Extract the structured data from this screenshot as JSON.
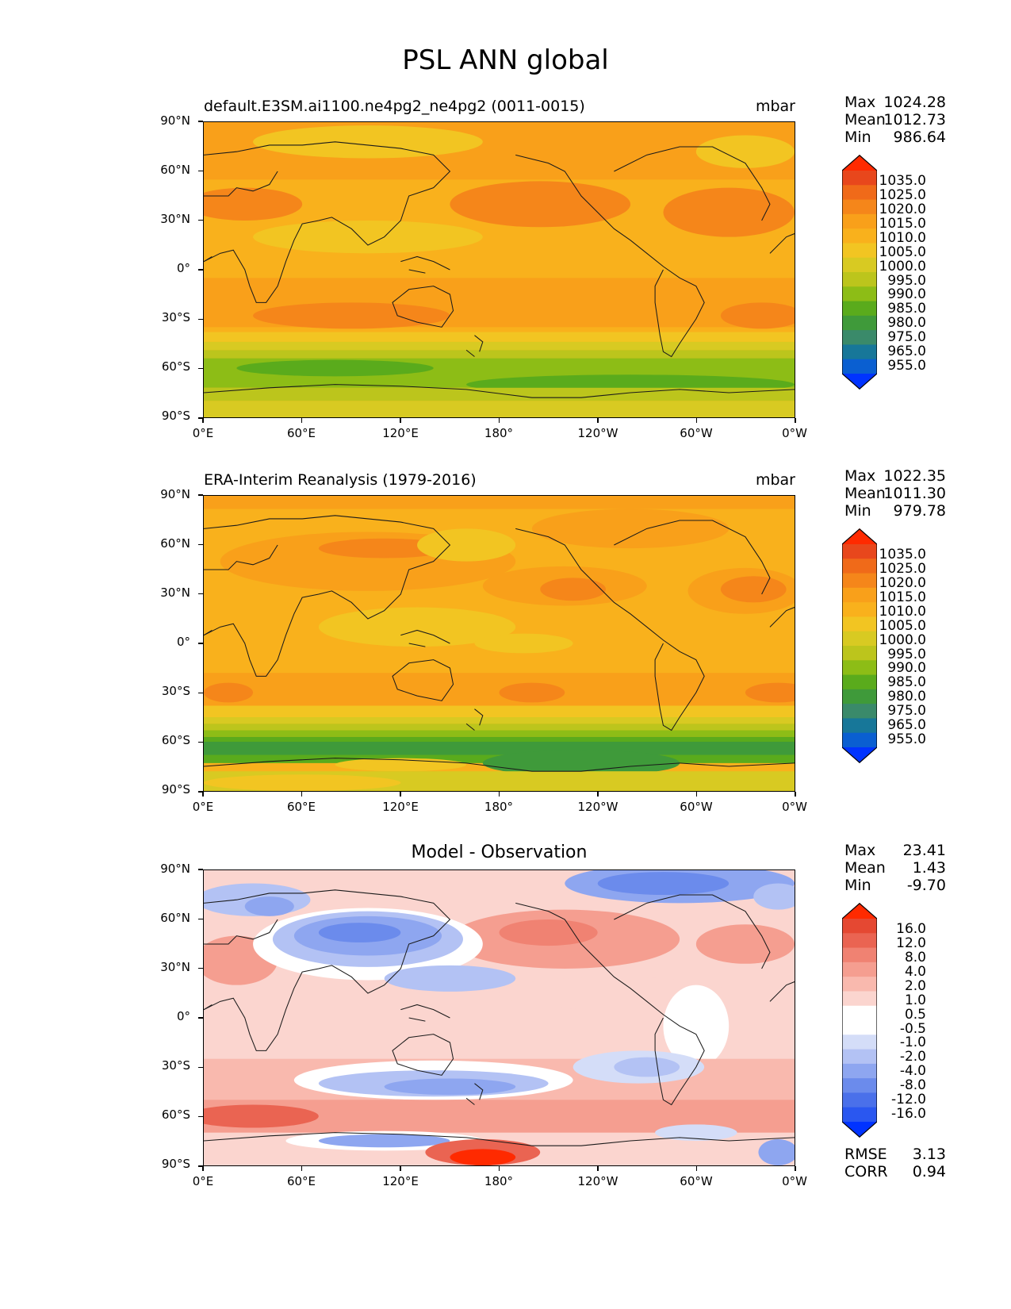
{
  "figure": {
    "title": "PSL ANN global"
  },
  "axes_ticks": {
    "lat": [
      "90°N",
      "60°N",
      "30°N",
      "0°",
      "30°S",
      "60°S",
      "90°S"
    ],
    "lon": [
      "0°E",
      "60°E",
      "120°E",
      "180°",
      "120°W",
      "60°W",
      "0°W"
    ]
  },
  "colors": {
    "psl_levels": [
      "#0033ff",
      "#0a5fd1",
      "#177799",
      "#3a8a6a",
      "#3f9a3a",
      "#5aab1c",
      "#8dbd16",
      "#bcc51c",
      "#d8ca22",
      "#f2c522",
      "#f9b11c",
      "#f9a01a",
      "#f5861a",
      "#f06a19",
      "#e8471c",
      "#ff2a00"
    ],
    "diff_levels": [
      "#0033ff",
      "#2a57f0",
      "#4a70ea",
      "#6b8bec",
      "#8ea6f0",
      "#b3c2f4",
      "#d4ddf8",
      "#ffffff",
      "#ffffff",
      "#fbd5cf",
      "#f9b9ae",
      "#f59e90",
      "#f08272",
      "#ea6452",
      "#e54832",
      "#ff2a00"
    ]
  },
  "panels": [
    {
      "id": "test",
      "title": "default.E3SM.ai1100.ne4pg2_ne4pg2 (0011-0015)",
      "units": "mbar",
      "stats": [
        {
          "key": "Max",
          "value": "1024.28"
        },
        {
          "key": "Mean",
          "value": "1012.73"
        },
        {
          "key": "Min",
          "value": "986.64"
        }
      ],
      "colorbar_labels": [
        "1035.0",
        "1025.0",
        "1020.0",
        "1015.0",
        "1010.0",
        "1005.0",
        "1000.0",
        "995.0",
        "990.0",
        "985.0",
        "980.0",
        "975.0",
        "965.0",
        "955.0"
      ]
    },
    {
      "id": "reference",
      "title": "ERA-Interim Reanalysis (1979-2016)",
      "units": "mbar",
      "stats": [
        {
          "key": "Max",
          "value": "1022.35"
        },
        {
          "key": "Mean",
          "value": "1011.30"
        },
        {
          "key": "Min",
          "value": "979.78"
        }
      ],
      "colorbar_labels": [
        "1035.0",
        "1025.0",
        "1020.0",
        "1015.0",
        "1010.0",
        "1005.0",
        "1000.0",
        "995.0",
        "990.0",
        "985.0",
        "980.0",
        "975.0",
        "965.0",
        "955.0"
      ]
    },
    {
      "id": "diff",
      "title": "Model - Observation",
      "units": "",
      "stats": [
        {
          "key": "Max",
          "value": "23.41"
        },
        {
          "key": "Mean",
          "value": "1.43"
        },
        {
          "key": "Min",
          "value": "-9.70"
        }
      ],
      "colorbar_labels": [
        "16.0",
        "12.0",
        "8.0",
        "4.0",
        "2.0",
        "1.0",
        "0.5",
        "-0.5",
        "-1.0",
        "-2.0",
        "-4.0",
        "-8.0",
        "-12.0",
        "-16.0"
      ],
      "metrics": [
        {
          "key": "RMSE",
          "value": "3.13"
        },
        {
          "key": "CORR",
          "value": "0.94"
        }
      ]
    }
  ]
}
